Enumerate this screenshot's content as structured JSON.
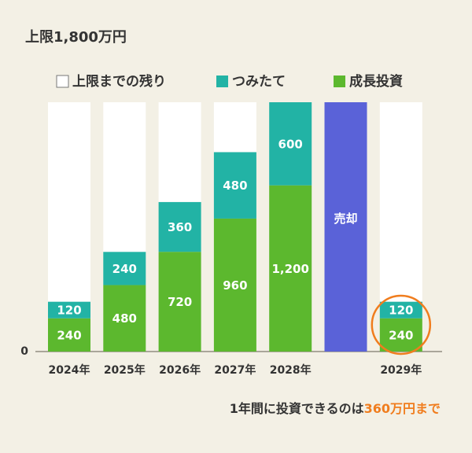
{
  "chart_data": {
    "type": "stacked_bar",
    "title": "上限1,800万円",
    "categories": [
      "2024年",
      "2025年",
      "2026年",
      "2027年",
      "2028年",
      null,
      "2029年"
    ],
    "series": [
      {
        "name": "上限までの残り",
        "color": "#ffffff",
        "values": [
          1440,
          1080,
          720,
          360,
          0,
          null,
          1440
        ]
      },
      {
        "name": "つみたて",
        "color": "#22b3a5",
        "values": [
          120,
          240,
          360,
          480,
          600,
          null,
          120
        ]
      },
      {
        "name": "成長投資",
        "color": "#5cb82e",
        "values": [
          240,
          480,
          720,
          960,
          1200,
          null,
          240
        ],
        "value_labels": [
          "240",
          "480",
          "720",
          "960",
          "1,200",
          null,
          "240"
        ]
      }
    ],
    "sell_bar": {
      "label": "売却",
      "color": "#5a62d8",
      "values": [
        null,
        null,
        null,
        null,
        null,
        1800,
        null
      ]
    },
    "ylim": [
      0,
      1800
    ],
    "yticks": [
      0
    ],
    "note": [
      {
        "text": "1年間に投資できるのは",
        "color": "#333333"
      },
      {
        "text": "360万円まで",
        "color": "#f07d1e"
      }
    ]
  }
}
